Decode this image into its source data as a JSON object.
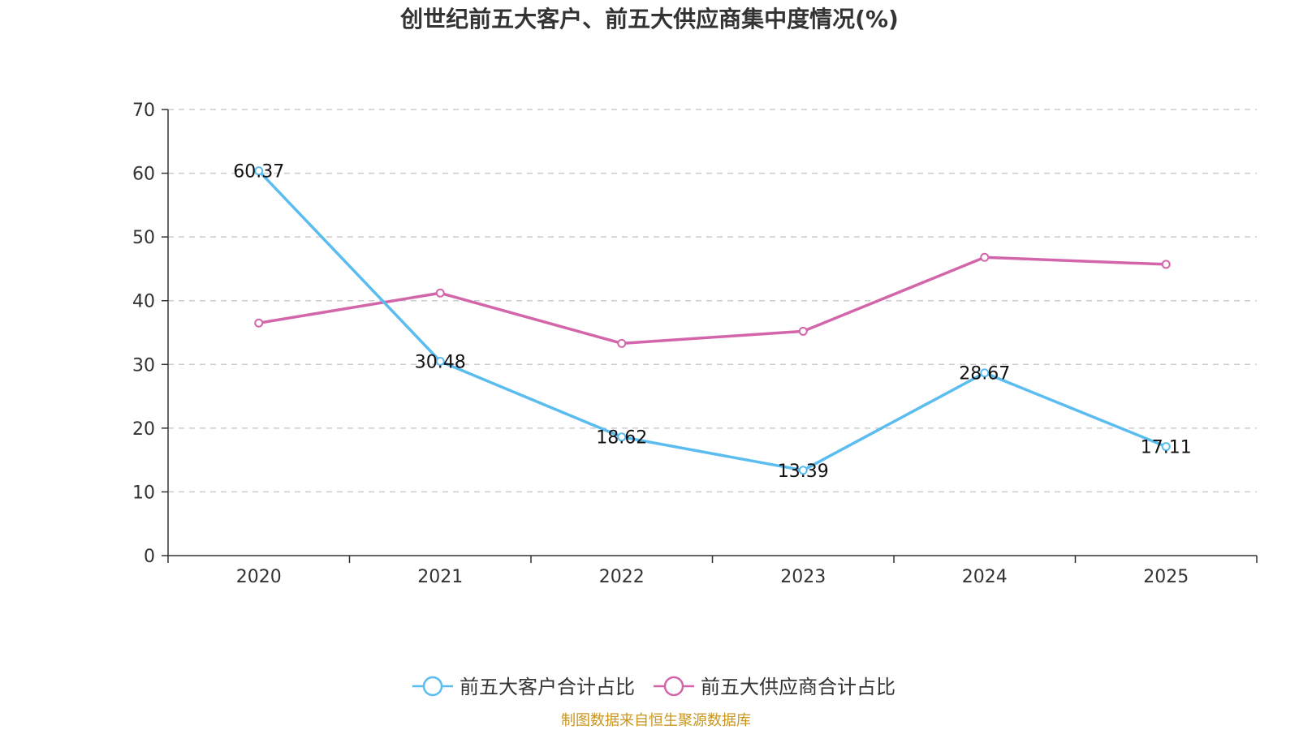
{
  "chart_data": {
    "type": "line",
    "title": "创世纪前五大客户、前五大供应商集中度情况(%)",
    "xlabel": "",
    "ylabel": "",
    "categories": [
      "2020",
      "2021",
      "2022",
      "2023",
      "2024",
      "2025"
    ],
    "ylim": [
      0,
      70
    ],
    "yticks": [
      0,
      10,
      20,
      30,
      40,
      50,
      60,
      70
    ],
    "ytick_labels": [
      "0",
      "10",
      "20",
      "30",
      "40",
      "50",
      "60",
      "70"
    ],
    "grid": true,
    "legend_position": "bottom-center",
    "series": [
      {
        "name": "前五大客户合计占比",
        "color": "#5bbcf0",
        "values": [
          60.37,
          30.48,
          18.62,
          13.39,
          28.67,
          17.11
        ],
        "labels": [
          "60.37",
          "30.48",
          "18.62",
          "13.39",
          "28.67",
          "17.11"
        ]
      },
      {
        "name": "前五大供应商合计占比",
        "color": "#d366aa",
        "values": [
          36.5,
          41.2,
          33.3,
          35.2,
          46.8,
          45.7
        ]
      }
    ]
  },
  "source_text": "制图数据来自恒生聚源数据库",
  "source_color": "#c8961e"
}
